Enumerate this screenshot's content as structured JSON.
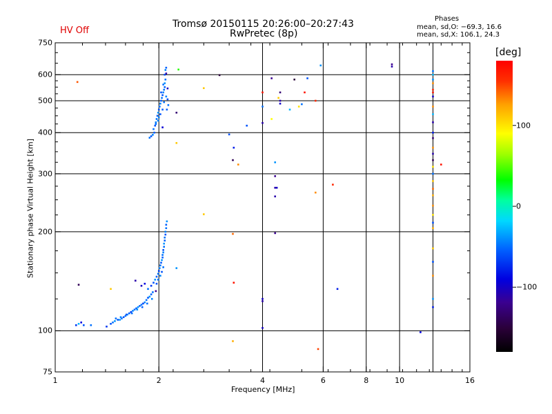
{
  "header": {
    "title": "Tromsø 20150115 20:26:00–20:27:43",
    "subtitle": "RwPretec (8p)",
    "status": "HV Off",
    "status_color": "#e00000"
  },
  "phases": {
    "heading": "Phases",
    "line_o": "mean, sd,O: −69.3, 16.6",
    "line_x": "mean, sd,X: 106.1, 24.3"
  },
  "chart_data": {
    "type": "scatter",
    "title": "Tromsø 20150115 20:26:00–20:27:43",
    "subtitle": "RwPretec (8p)",
    "xlabel": "Frequency [MHz]",
    "ylabel": "Stationary phase Virtual Height [km]",
    "x_scale": "log2",
    "y_scale": "log",
    "xlim": [
      1,
      16
    ],
    "ylim": [
      75,
      750
    ],
    "x_ticks": [
      {
        "value": 1,
        "label": "1"
      },
      {
        "value": 2,
        "label": "2"
      },
      {
        "value": 4,
        "label": "4"
      },
      {
        "value": 6,
        "label": "6"
      },
      {
        "value": 8,
        "label": "8"
      },
      {
        "value": 10,
        "label": "10"
      },
      {
        "value": 16,
        "label": "16"
      }
    ],
    "y_ticks": [
      {
        "value": 75,
        "label": "75"
      },
      {
        "value": 100,
        "label": "100"
      },
      {
        "value": 200,
        "label": "200"
      },
      {
        "value": 300,
        "label": "300"
      },
      {
        "value": 400,
        "label": "400"
      },
      {
        "value": 500,
        "label": "500"
      },
      {
        "value": 600,
        "label": "600"
      },
      {
        "value": 750,
        "label": "750"
      }
    ],
    "grid": true,
    "grid_x": [
      2,
      4,
      6,
      8,
      10,
      12.5
    ],
    "grid_y": [
      100,
      200,
      300,
      400,
      500,
      600
    ],
    "colorbar": {
      "label": "[deg]",
      "range": [
        -180,
        180
      ],
      "ticks": [
        {
          "value": 100,
          "label": "100"
        },
        {
          "value": 0,
          "label": "0"
        },
        {
          "value": -100,
          "label": "−100"
        }
      ]
    },
    "points": [
      [
        1.15,
        104,
        -70
      ],
      [
        1.17,
        105,
        -30
      ],
      [
        1.19,
        106,
        -90
      ],
      [
        1.21,
        104,
        -60
      ],
      [
        1.27,
        104,
        -50
      ],
      [
        1.41,
        103,
        -70
      ],
      [
        1.45,
        105,
        -60
      ],
      [
        1.47,
        106,
        -50
      ],
      [
        1.49,
        107,
        -40
      ],
      [
        1.52,
        108,
        -60
      ],
      [
        1.54,
        108,
        -40
      ],
      [
        1.56,
        109,
        -50
      ],
      [
        1.58,
        110,
        -60
      ],
      [
        1.6,
        111,
        -50
      ],
      [
        1.62,
        112,
        -40
      ],
      [
        1.64,
        113,
        -55
      ],
      [
        1.66,
        114,
        -70
      ],
      [
        1.68,
        115,
        -45
      ],
      [
        1.7,
        116,
        -50
      ],
      [
        1.72,
        117,
        -60
      ],
      [
        1.74,
        118,
        -40
      ],
      [
        1.76,
        119,
        -55
      ],
      [
        1.78,
        120,
        -50
      ],
      [
        1.8,
        121,
        -65
      ],
      [
        1.82,
        122,
        -45
      ],
      [
        1.84,
        124,
        -50
      ],
      [
        1.86,
        126,
        -60
      ],
      [
        1.88,
        127,
        -40
      ],
      [
        1.9,
        129,
        -55
      ],
      [
        1.92,
        131,
        -50
      ],
      [
        1.5,
        109,
        -50
      ],
      [
        1.55,
        110,
        -45
      ],
      [
        1.61,
        112,
        -60
      ],
      [
        1.67,
        113,
        -50
      ],
      [
        1.73,
        116,
        -40
      ],
      [
        1.79,
        118,
        -55
      ],
      [
        1.85,
        121,
        -50
      ],
      [
        1.91,
        125,
        -45
      ],
      [
        1.86,
        134,
        -50
      ],
      [
        1.9,
        137,
        -70
      ],
      [
        1.93,
        140,
        -60
      ],
      [
        1.95,
        143,
        -40
      ],
      [
        1.97,
        146,
        -55
      ],
      [
        1.99,
        149,
        -50
      ],
      [
        2.0,
        152,
        -65
      ],
      [
        2.01,
        155,
        -45
      ],
      [
        2.02,
        158,
        -50
      ],
      [
        2.03,
        161,
        -60
      ],
      [
        2.04,
        164,
        -40
      ],
      [
        2.05,
        167,
        -55
      ],
      [
        2.05,
        170,
        -50
      ],
      [
        2.06,
        173,
        -45
      ],
      [
        2.06,
        176,
        -60
      ],
      [
        2.07,
        180,
        -50
      ],
      [
        2.07,
        184,
        -40
      ],
      [
        2.08,
        188,
        -55
      ],
      [
        2.08,
        192,
        -50
      ],
      [
        2.09,
        196,
        -60
      ],
      [
        2.09,
        200,
        -45
      ],
      [
        2.1,
        205,
        -50
      ],
      [
        2.1,
        210,
        -55
      ],
      [
        2.11,
        215,
        -40
      ],
      [
        1.97,
        139,
        -60
      ],
      [
        1.99,
        143,
        -50
      ],
      [
        2.02,
        147,
        -45
      ],
      [
        2.04,
        151,
        -60
      ],
      [
        2.06,
        156,
        -50
      ],
      [
        1.71,
        142,
        -110
      ],
      [
        1.78,
        137,
        -100
      ],
      [
        1.82,
        139,
        -90
      ],
      [
        1.96,
        132,
        -120
      ],
      [
        1.88,
        386,
        -50
      ],
      [
        1.9,
        390,
        -60
      ],
      [
        1.92,
        394,
        -45
      ],
      [
        1.94,
        400,
        -55
      ],
      [
        1.93,
        410,
        -50
      ],
      [
        1.95,
        420,
        -60
      ],
      [
        1.96,
        430,
        -45
      ],
      [
        1.97,
        440,
        -50
      ],
      [
        1.98,
        450,
        -55
      ],
      [
        1.99,
        460,
        -40
      ],
      [
        2.0,
        470,
        -60
      ],
      [
        2.01,
        480,
        -50
      ],
      [
        2.02,
        490,
        -45
      ],
      [
        2.03,
        500,
        -55
      ],
      [
        2.04,
        510,
        -50
      ],
      [
        2.05,
        520,
        -60
      ],
      [
        2.06,
        530,
        -45
      ],
      [
        2.07,
        540,
        -50
      ],
      [
        2.08,
        550,
        -55
      ],
      [
        2.08,
        565,
        -40
      ],
      [
        2.09,
        580,
        -50
      ],
      [
        2.08,
        600,
        -60
      ],
      [
        2.09,
        620,
        -45
      ],
      [
        2.1,
        630,
        -55
      ],
      [
        1.96,
        425,
        -50
      ],
      [
        1.99,
        435,
        -45
      ],
      [
        2.02,
        455,
        -60
      ],
      [
        2.05,
        470,
        -55
      ],
      [
        2.07,
        495,
        -50
      ],
      [
        2.1,
        515,
        -45
      ],
      [
        2.12,
        505,
        -60
      ],
      [
        2.13,
        485,
        -50
      ],
      [
        2.11,
        470,
        -55
      ],
      [
        2.0,
        445,
        -45
      ],
      [
        2.03,
        530,
        -60
      ],
      [
        2.06,
        560,
        -50
      ],
      [
        2.1,
        605,
        -110
      ],
      [
        2.12,
        545,
        -100
      ],
      [
        2.05,
        415,
        -95
      ],
      [
        1.16,
        570,
        145
      ],
      [
        1.17,
        138,
        -140
      ],
      [
        1.45,
        134,
        110
      ],
      [
        2.25,
        460,
        -130
      ],
      [
        2.25,
        372,
        110
      ],
      [
        2.25,
        155,
        -40
      ],
      [
        2.28,
        622,
        40
      ],
      [
        2.7,
        546,
        110
      ],
      [
        2.7,
        226,
        110
      ],
      [
        3.0,
        598,
        -150
      ],
      [
        3.2,
        395,
        -60
      ],
      [
        3.28,
        197,
        140
      ],
      [
        3.28,
        93,
        120
      ],
      [
        3.3,
        360,
        -80
      ],
      [
        3.3,
        140,
        170
      ],
      [
        3.28,
        330,
        -140
      ],
      [
        3.4,
        320,
        130
      ],
      [
        3.6,
        420,
        -60
      ],
      [
        4.0,
        530,
        170
      ],
      [
        4.0,
        480,
        -50
      ],
      [
        4.0,
        428,
        -110
      ],
      [
        4.0,
        125,
        -100
      ],
      [
        4.0,
        123,
        -110
      ],
      [
        4.0,
        102,
        -100
      ],
      [
        4.25,
        585,
        -120
      ],
      [
        4.25,
        440,
        90
      ],
      [
        4.35,
        325,
        -40
      ],
      [
        4.35,
        295,
        -120
      ],
      [
        4.35,
        272,
        -110
      ],
      [
        4.4,
        272,
        -100
      ],
      [
        4.35,
        256,
        -110
      ],
      [
        4.35,
        198,
        -120
      ],
      [
        4.45,
        510,
        110
      ],
      [
        4.5,
        530,
        -130
      ],
      [
        4.5,
        500,
        -110
      ],
      [
        4.5,
        490,
        -100
      ],
      [
        4.8,
        470,
        -30
      ],
      [
        4.95,
        580,
        -150
      ],
      [
        5.1,
        480,
        100
      ],
      [
        5.2,
        488,
        -50
      ],
      [
        5.3,
        530,
        170
      ],
      [
        5.4,
        585,
        -60
      ],
      [
        5.7,
        500,
        160
      ],
      [
        5.7,
        263,
        130
      ],
      [
        5.8,
        88,
        150
      ],
      [
        5.9,
        640,
        -40
      ],
      [
        6.4,
        278,
        160
      ],
      [
        6.6,
        134,
        -80
      ],
      [
        9.5,
        645,
        -120
      ],
      [
        9.5,
        635,
        -110
      ],
      [
        11.5,
        99,
        -90
      ],
      [
        12.5,
        615,
        -50
      ],
      [
        12.5,
        600,
        -30
      ],
      [
        12.5,
        580,
        -40
      ],
      [
        12.5,
        565,
        130
      ],
      [
        12.5,
        540,
        160
      ],
      [
        12.5,
        530,
        170
      ],
      [
        12.5,
        515,
        -100
      ],
      [
        12.5,
        480,
        130
      ],
      [
        12.5,
        455,
        -30
      ],
      [
        12.5,
        430,
        -110
      ],
      [
        12.5,
        400,
        -80
      ],
      [
        12.5,
        385,
        -130
      ],
      [
        12.5,
        360,
        130
      ],
      [
        12.5,
        345,
        -110
      ],
      [
        12.5,
        330,
        -140
      ],
      [
        12.5,
        315,
        100
      ],
      [
        12.5,
        300,
        -50
      ],
      [
        12.5,
        285,
        110
      ],
      [
        12.5,
        270,
        140
      ],
      [
        12.5,
        258,
        120
      ],
      [
        12.5,
        240,
        130
      ],
      [
        12.5,
        225,
        100
      ],
      [
        12.5,
        213,
        -60
      ],
      [
        12.5,
        205,
        120
      ],
      [
        12.5,
        178,
        110
      ],
      [
        12.5,
        162,
        -60
      ],
      [
        12.5,
        147,
        130
      ],
      [
        12.5,
        125,
        -40
      ],
      [
        12.5,
        118,
        -80
      ],
      [
        13.2,
        320,
        170
      ]
    ]
  }
}
